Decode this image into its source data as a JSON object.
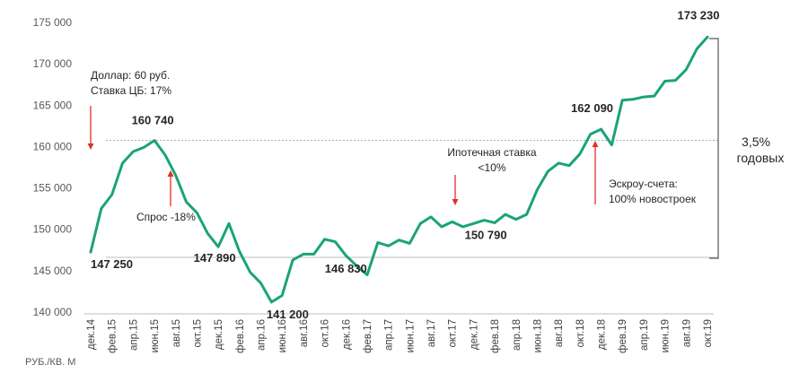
{
  "chart_data": {
    "type": "line",
    "unit_label": "РУБ./КВ. М",
    "ylim": [
      140000,
      175000
    ],
    "yticks": [
      {
        "value": 140000,
        "label": "140 000"
      },
      {
        "value": 145000,
        "label": "145 000"
      },
      {
        "value": 150000,
        "label": "150 000"
      },
      {
        "value": 155000,
        "label": "155 000"
      },
      {
        "value": 160000,
        "label": "160 000"
      },
      {
        "value": 165000,
        "label": "165 000"
      },
      {
        "value": 170000,
        "label": "170 000"
      },
      {
        "value": 175000,
        "label": "175 000"
      }
    ],
    "x": [
      "дек.14",
      "янв.15",
      "фев.15",
      "мар.15",
      "апр.15",
      "май.15",
      "июн.15",
      "июл.15",
      "авг.15",
      "сен.15",
      "окт.15",
      "ноя.15",
      "дек.15",
      "янв.16",
      "фев.16",
      "мар.16",
      "апр.16",
      "май.16",
      "июн.16",
      "июл.16",
      "авг.16",
      "сен.16",
      "окт.16",
      "ноя.16",
      "дек.16",
      "янв.17",
      "фев.17",
      "мар.17",
      "апр.17",
      "май.17",
      "июн.17",
      "июл.17",
      "авг.17",
      "сен.17",
      "окт.17",
      "ноя.17",
      "дек.17",
      "янв.18",
      "фев.18",
      "мар.18",
      "апр.18",
      "май.18",
      "июн.18",
      "июл.18",
      "авг.18",
      "сен.18",
      "окт.18",
      "ноя.18",
      "дек.18",
      "янв.19",
      "фев.19",
      "мар.19",
      "апр.19",
      "май.19",
      "июн.19",
      "июл.19",
      "авг.19",
      "сен.19",
      "окт.19"
    ],
    "xtick_labels": [
      "дек.14",
      "фев.15",
      "апр.15",
      "июн.15",
      "авг.15",
      "окт.15",
      "дек.15",
      "фев.16",
      "апр.16",
      "июн.16",
      "авг.16",
      "окт.16",
      "дек.16",
      "фев.17",
      "апр.17",
      "июн.17",
      "авг.17",
      "окт.17",
      "дек.17",
      "фев.18",
      "апр.18",
      "июн.18",
      "авг.18",
      "окт.18",
      "дек.18",
      "фев.19",
      "апр.19",
      "июн.19",
      "авг.19",
      "окт.19"
    ],
    "series": [
      {
        "color": "#1aa37a",
        "values": [
          147250,
          152500,
          154200,
          158000,
          159400,
          159900,
          160740,
          159000,
          156500,
          153300,
          152000,
          149500,
          147890,
          150700,
          147300,
          144800,
          143500,
          141200,
          142000,
          146300,
          147000,
          147000,
          148800,
          148500,
          146830,
          145600,
          144500,
          148400,
          148000,
          148700,
          148300,
          150700,
          151500,
          150300,
          150900,
          150300,
          150700,
          151100,
          150790,
          151800,
          151200,
          151800,
          154800,
          157000,
          158000,
          157700,
          159100,
          161500,
          162090,
          160200,
          165600,
          165700,
          166000,
          166100,
          167900,
          168000,
          169300,
          171800,
          173230
        ]
      }
    ],
    "data_labels": [
      {
        "index": 0,
        "text": "147 250"
      },
      {
        "index": 6,
        "text": "160 740"
      },
      {
        "index": 12,
        "text": "147 890"
      },
      {
        "index": 17,
        "text": "141 200"
      },
      {
        "index": 24,
        "text": "146 830"
      },
      {
        "index": 38,
        "text": "150 790"
      },
      {
        "index": 48,
        "text": "162 090"
      },
      {
        "index": 58,
        "text": "173 230"
      }
    ],
    "annotations": {
      "dollar_line1": "Доллар: 60 руб.",
      "dollar_line2": "Ставка ЦБ: 17%",
      "demand": "Спрос -18%",
      "mortgage_line1": "Ипотечная ставка",
      "mortgage_line2": "<10%",
      "escrow_line1": "Эскроу-счета:",
      "escrow_line2": "100% новостроек",
      "growth_line1": "3,5%",
      "growth_line2": "годовых"
    },
    "reference_lines": [
      160740,
      146830
    ],
    "arrow_color": "#e0302a",
    "grid": false,
    "legend": "none"
  }
}
